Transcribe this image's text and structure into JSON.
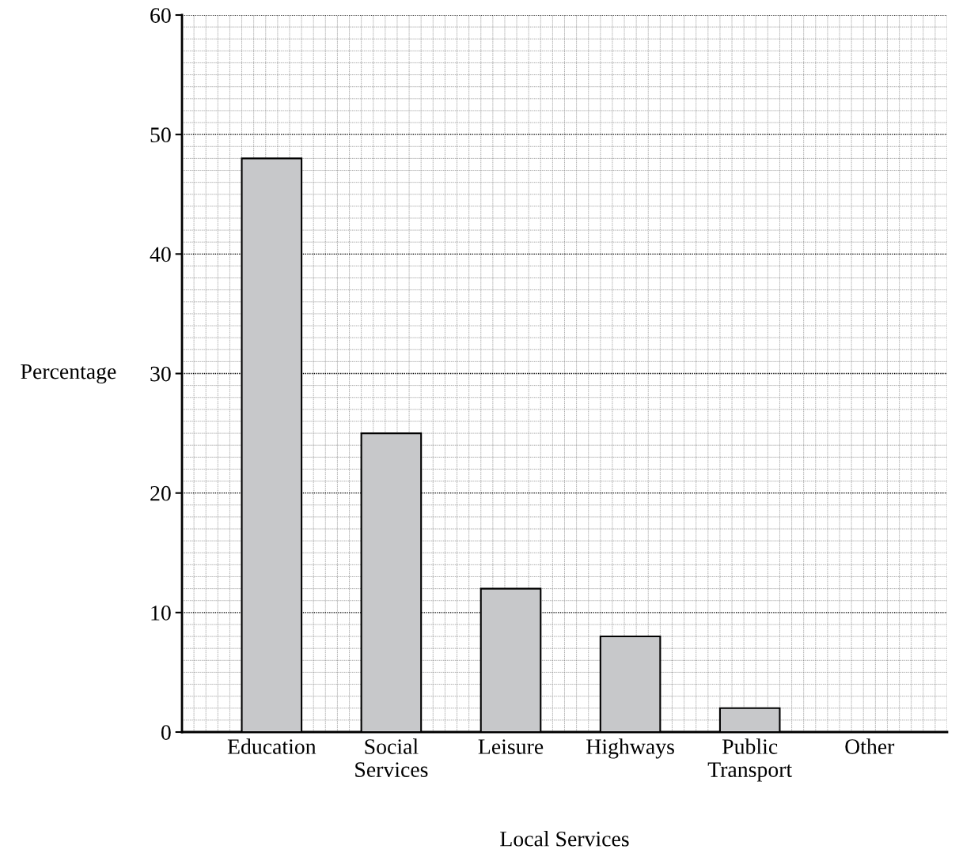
{
  "chart_data": {
    "type": "bar",
    "xlabel": "Local Services",
    "ylabel": "Percentage",
    "categories": [
      "Education",
      "Social\nServices",
      "Leisure",
      "Highways",
      "Public\nTransport",
      "Other"
    ],
    "values": [
      48,
      25,
      12,
      8,
      2,
      null
    ],
    "color": "#c7c8ca",
    "ylim": [
      0,
      60
    ],
    "yticks": [
      0,
      10,
      20,
      30,
      40,
      50,
      60
    ],
    "grid": true
  }
}
